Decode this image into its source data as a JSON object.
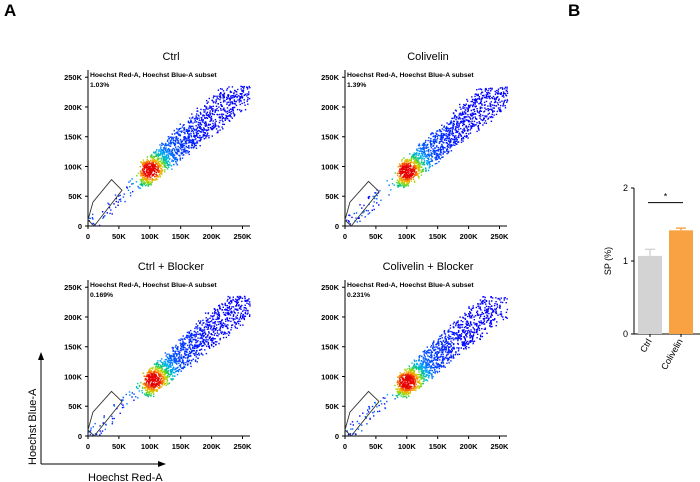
{
  "panel_a": {
    "letter": "A",
    "x_axis_label": "Hoechst Red-A",
    "y_axis_label": "Hoechst Blue-A"
  },
  "panel_b": {
    "letter": "B"
  },
  "chart_data": [
    {
      "type": "scatter",
      "title": "Ctrl",
      "gate_label": "Hoechst Red-A, Hoechst Blue-A subset",
      "gate_percent": "1.03%",
      "x_ticks": [
        "0",
        "50K",
        "100K",
        "150K",
        "200K",
        "250K"
      ],
      "y_ticks": [
        "0",
        "50K",
        "100K",
        "150K",
        "200K",
        "250K"
      ],
      "xlim": [
        0,
        262144
      ],
      "ylim": [
        0,
        262144
      ],
      "density_peak": [
        100000,
        95000
      ],
      "spread_seed": 11,
      "gate_polygon": [
        [
          0,
          10000
        ],
        [
          8000,
          40000
        ],
        [
          38000,
          78000
        ],
        [
          55000,
          60000
        ],
        [
          10000,
          0
        ]
      ]
    },
    {
      "type": "scatter",
      "title": "Colivelin",
      "gate_label": "Hoechst Red-A, Hoechst Blue-A subset",
      "gate_percent": "1.39%",
      "x_ticks": [
        "0",
        "50K",
        "100K",
        "150K",
        "200K",
        "250K"
      ],
      "y_ticks": [
        "0",
        "50K",
        "100K",
        "150K",
        "200K",
        "250K"
      ],
      "xlim": [
        0,
        262144
      ],
      "ylim": [
        0,
        262144
      ],
      "density_peak": [
        100000,
        93000
      ],
      "spread_seed": 23,
      "gate_polygon": [
        [
          0,
          10000
        ],
        [
          8000,
          40000
        ],
        [
          38000,
          75000
        ],
        [
          55000,
          58000
        ],
        [
          10000,
          0
        ]
      ]
    },
    {
      "type": "scatter",
      "title": "Ctrl + Blocker",
      "gate_label": "Hoechst Red-A, Hoechst Blue-A subset",
      "gate_percent": "0.169%",
      "x_ticks": [
        "0",
        "50K",
        "100K",
        "150K",
        "200K",
        "250K"
      ],
      "y_ticks": [
        "0",
        "50K",
        "100K",
        "150K",
        "200K",
        "250K"
      ],
      "xlim": [
        0,
        262144
      ],
      "ylim": [
        0,
        262144
      ],
      "density_peak": [
        105000,
        95000
      ],
      "spread_seed": 37,
      "gate_polygon": [
        [
          0,
          10000
        ],
        [
          8000,
          40000
        ],
        [
          38000,
          75000
        ],
        [
          55000,
          58000
        ],
        [
          10000,
          0
        ]
      ]
    },
    {
      "type": "scatter",
      "title": "Colivelin + Blocker",
      "gate_label": "Hoechst Red-A, Hoechst Blue-A subset",
      "gate_percent": "0.231%",
      "x_ticks": [
        "0",
        "50K",
        "100K",
        "150K",
        "200K",
        "250K"
      ],
      "y_ticks": [
        "0",
        "50K",
        "100K",
        "150K",
        "200K",
        "250K"
      ],
      "xlim": [
        0,
        262144
      ],
      "ylim": [
        0,
        262144
      ],
      "density_peak": [
        100000,
        92000
      ],
      "spread_seed": 53,
      "gate_polygon": [
        [
          0,
          10000
        ],
        [
          8000,
          40000
        ],
        [
          38000,
          75000
        ],
        [
          55000,
          58000
        ],
        [
          10000,
          0
        ]
      ]
    },
    {
      "type": "bar",
      "title": "",
      "ylabel": "SP (%)",
      "ylim": [
        0,
        2
      ],
      "y_ticks": [
        "0",
        "1",
        "2"
      ],
      "categories": [
        "Ctrl",
        "Colivelin"
      ],
      "values": [
        1.07,
        1.42
      ],
      "errors": [
        0.09,
        0.03
      ],
      "colors": [
        "#d3d3d3",
        "#f8a243"
      ],
      "significance": "*"
    }
  ]
}
